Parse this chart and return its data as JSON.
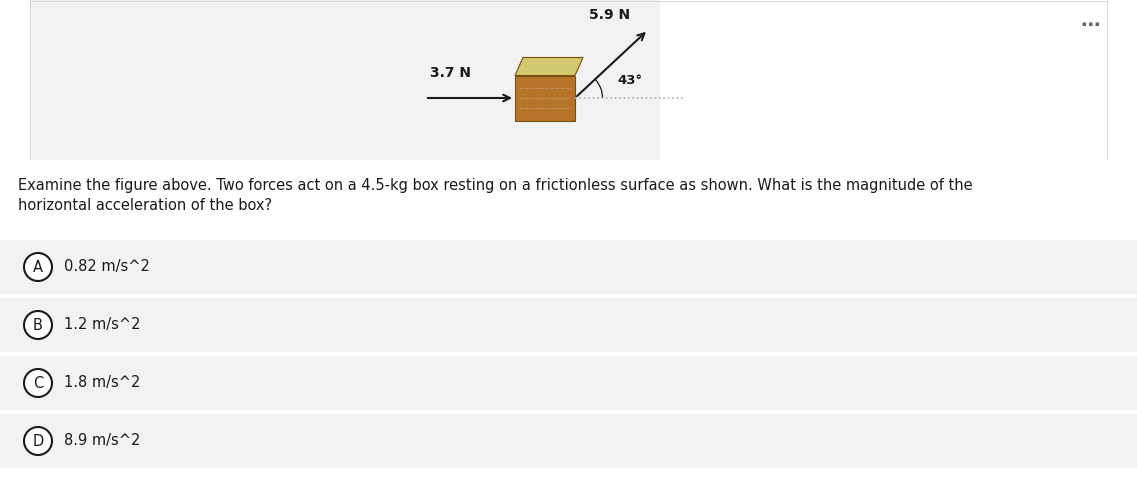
{
  "white_bg": "#ffffff",
  "panel_grey": "#f2f2f2",
  "choice_bg": "#f2f2f2",
  "text_color": "#1a1a1a",
  "arrow_color": "#1a1a1a",
  "dashed_color": "#aaaaaa",
  "box_top_color": "#d4c870",
  "box_side_color": "#b8732a",
  "box_edge_color": "#7a5010",
  "dots_color": "#666666",
  "force1_label": "3.7 N",
  "force2_label": "5.9 N",
  "angle_label": "43°",
  "dots": "⋯",
  "question_line1": "Examine the figure above. Two forces act on a 4.5-kg box resting on a frictionless surface as shown. What is the magnitude of the",
  "question_line2": "horizontal acceleration of the box?",
  "choices": [
    {
      "label": "A",
      "text": "0.82 m/s^2"
    },
    {
      "label": "B",
      "text": "1.2 m/s^2"
    },
    {
      "label": "C",
      "text": "1.8 m/s^2"
    },
    {
      "label": "D",
      "text": "8.9 m/s^2"
    }
  ],
  "fig_width": 11.37,
  "fig_height": 4.88,
  "dpi": 100
}
